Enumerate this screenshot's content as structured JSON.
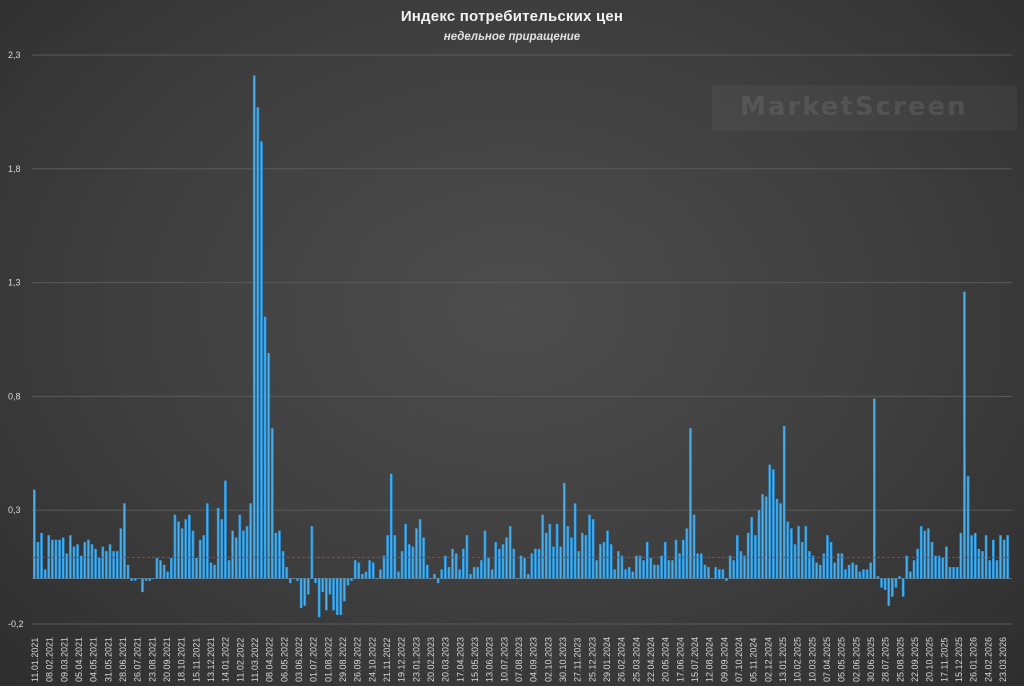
{
  "chart_data": {
    "type": "bar",
    "title": "Индекс потребительских цен",
    "subtitle": "недельное приращение",
    "watermark": "MarketScreen",
    "ylim": [
      -0.2,
      2.3
    ],
    "yticks": [
      -0.2,
      0.3,
      0.8,
      1.3,
      1.8,
      2.3
    ],
    "ytick_labels": [
      "-0,2",
      "0,3",
      "0,8",
      "1,3",
      "1,8",
      "2,3"
    ],
    "reference_line": 0.093,
    "grid": true,
    "x_tick_labels": [
      "11.01.2021",
      "08.02.2021",
      "09.03.2021",
      "05.04.2021",
      "04.05.2021",
      "31.05.2021",
      "28.06.2021",
      "26.07.2021",
      "23.08.2021",
      "20.09.2021",
      "18.10.2021",
      "15.11.2021",
      "13.12.2021",
      "14.01.2022",
      "11.02.2022",
      "11.03.2022",
      "08.04.2022",
      "06.05.2022",
      "03.06.2022",
      "01.07.2022",
      "01.08.2022",
      "29.08.2022",
      "26.09.2022",
      "24.10.2022",
      "21.11.2022",
      "19.12.2022",
      "23.01.2023",
      "20.02.2023",
      "20.03.2023",
      "17.04.2023",
      "15.05.2023",
      "13.06.2023",
      "10.07.2023",
      "07.08.2023",
      "04.09.2023",
      "02.10.2023",
      "30.10.2023",
      "27.11.2023",
      "25.12.2023",
      "29.01.2024",
      "26.02.2024",
      "25.03.2024",
      "22.04.2024",
      "20.05.2024",
      "17.06.2024",
      "15.07.2024",
      "12.08.2024",
      "09.09.2024",
      "07.10.2024",
      "05.11.2024",
      "02.12.2024",
      "13.01.2025",
      "10.02.2025",
      "10.03.2025",
      "07.04.2025",
      "05.05.2025",
      "02.06.2025",
      "30.06.2025",
      "28.07.2025",
      "25.08.2025",
      "22.09.2025",
      "20.10.2025",
      "17.11.2025",
      "15.12.2025",
      "26.01.2026",
      "24.02.2026",
      "23.03.2026"
    ],
    "values": [
      0.39,
      0.16,
      0.2,
      0.04,
      0.19,
      0.17,
      0.17,
      0.17,
      0.18,
      0.11,
      0.19,
      0.14,
      0.15,
      0.1,
      0.16,
      0.17,
      0.15,
      0.13,
      0.09,
      0.14,
      0.12,
      0.15,
      0.12,
      0.12,
      0.22,
      0.33,
      0.06,
      -0.01,
      -0.01,
      0.0,
      -0.06,
      -0.01,
      -0.01,
      0.0,
      0.09,
      0.08,
      0.06,
      0.03,
      0.09,
      0.28,
      0.25,
      0.22,
      0.26,
      0.28,
      0.21,
      0.09,
      0.17,
      0.19,
      0.33,
      0.07,
      0.06,
      0.31,
      0.26,
      0.43,
      0.08,
      0.21,
      0.18,
      0.28,
      0.21,
      0.23,
      0.33,
      2.21,
      2.07,
      1.92,
      1.15,
      0.99,
      0.66,
      0.2,
      0.21,
      0.12,
      0.05,
      -0.02,
      0.0,
      -0.01,
      -0.13,
      -0.12,
      -0.07,
      0.23,
      -0.02,
      -0.17,
      -0.06,
      -0.14,
      -0.07,
      -0.14,
      -0.16,
      -0.16,
      -0.1,
      -0.03,
      -0.01,
      0.08,
      0.07,
      0.02,
      0.03,
      0.08,
      0.07,
      0.0,
      0.04,
      0.1,
      0.19,
      0.46,
      0.19,
      0.03,
      0.12,
      0.24,
      0.15,
      0.14,
      0.22,
      0.26,
      0.18,
      0.06,
      0.0,
      0.02,
      -0.02,
      0.04,
      0.1,
      0.05,
      0.13,
      0.11,
      0.04,
      0.13,
      0.19,
      0.02,
      0.05,
      0.05,
      0.08,
      0.21,
      0.09,
      0.04,
      0.16,
      0.13,
      0.15,
      0.18,
      0.23,
      0.13,
      0.0,
      0.1,
      0.09,
      0.02,
      0.11,
      0.13,
      0.13,
      0.28,
      0.2,
      0.24,
      0.14,
      0.24,
      0.14,
      0.42,
      0.23,
      0.18,
      0.33,
      0.12,
      0.2,
      0.19,
      0.28,
      0.26,
      0.08,
      0.15,
      0.16,
      0.21,
      0.15,
      0.04,
      0.12,
      0.1,
      0.04,
      0.05,
      0.03,
      0.1,
      0.1,
      0.08,
      0.16,
      0.09,
      0.06,
      0.06,
      0.1,
      0.16,
      0.08,
      0.08,
      0.17,
      0.11,
      0.17,
      0.22,
      0.66,
      0.28,
      0.11,
      0.11,
      0.06,
      0.05,
      0.0,
      0.05,
      0.04,
      0.04,
      -0.01,
      0.1,
      0.08,
      0.19,
      0.12,
      0.1,
      0.2,
      0.27,
      0.19,
      0.3,
      0.37,
      0.36,
      0.5,
      0.48,
      0.35,
      0.33,
      0.67,
      0.25,
      0.22,
      0.15,
      0.23,
      0.16,
      0.23,
      0.12,
      0.1,
      0.07,
      0.06,
      0.11,
      0.19,
      0.16,
      0.07,
      0.11,
      0.11,
      0.04,
      0.06,
      0.07,
      0.06,
      0.03,
      0.04,
      0.04,
      0.07,
      0.79,
      0.01,
      -0.04,
      -0.05,
      -0.12,
      -0.08,
      -0.04,
      0.01,
      -0.08,
      0.1,
      0.03,
      0.08,
      0.13,
      0.23,
      0.21,
      0.22,
      0.16,
      0.1,
      0.1,
      0.09,
      0.14,
      0.05,
      0.05,
      0.05,
      0.2,
      1.26,
      0.45,
      0.19,
      0.2,
      0.13,
      0.12,
      0.19,
      0.08,
      0.17,
      0.08,
      0.19,
      0.17,
      0.19
    ]
  }
}
